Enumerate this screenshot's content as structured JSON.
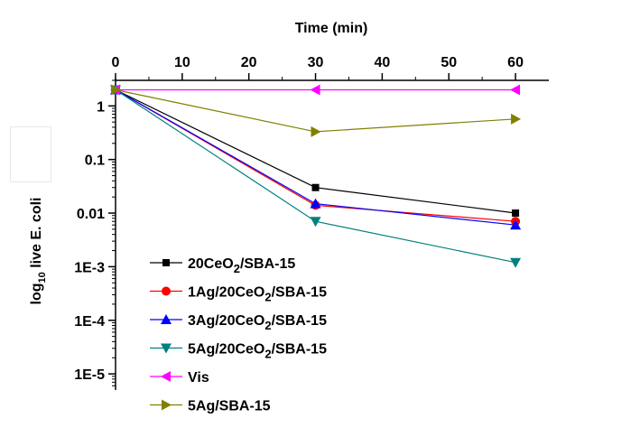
{
  "chart_data": {
    "type": "line",
    "xlabel": "Time (min)",
    "ylabel": {
      "prefix": "log",
      "subscript": "10",
      "suffix": " live E. coli"
    },
    "x_axis_position": "top",
    "y_scale": "log",
    "xlim": [
      0,
      65
    ],
    "ylim": [
      5e-06,
      3
    ],
    "x_ticks": [
      "0",
      "10",
      "20",
      "30",
      "40",
      "50",
      "60"
    ],
    "x_tick_values": [
      0,
      10,
      20,
      30,
      40,
      50,
      60
    ],
    "y_ticks": [
      {
        "value": 1,
        "label": "1",
        "sup": ""
      },
      {
        "value": 0.1,
        "label": "0.1",
        "sup": ""
      },
      {
        "value": 0.01,
        "label": "0.01",
        "sup": ""
      },
      {
        "value": 0.001,
        "label": "1E-3",
        "sup": ""
      },
      {
        "value": 0.0001,
        "label": "1E-4",
        "sup": ""
      },
      {
        "value": 1e-05,
        "label": "1E-5",
        "sup": ""
      }
    ],
    "x": [
      0,
      30,
      60
    ],
    "series": [
      {
        "name": "20CeO2/SBA-15",
        "label": {
          "pre": "20CeO",
          "sub": "2",
          "post": "/SBA-15"
        },
        "color": "#000000",
        "marker": "square",
        "values": [
          2,
          0.03,
          0.01
        ]
      },
      {
        "name": "1Ag/20CeO2/SBA-15",
        "label": {
          "pre": "1Ag/20CeO",
          "sub": "2",
          "post": "/SBA-15"
        },
        "color": "#ff0000",
        "marker": "circle",
        "values": [
          2,
          0.014,
          0.007
        ]
      },
      {
        "name": "3Ag/20CeO2/SBA-15",
        "label": {
          "pre": " 3Ag/20CeO",
          "sub": "2",
          "post": "/SBA-15"
        },
        "color": "#0000ff",
        "marker": "triangle-up",
        "values": [
          2,
          0.015,
          0.006
        ]
      },
      {
        "name": "5Ag/20CeO2/SBA-15",
        "label": {
          "pre": "5Ag/20CeO",
          "sub": "2",
          "post": "/SBA-15"
        },
        "color": "#008080",
        "marker": "triangle-down",
        "values": [
          2,
          0.007,
          0.0012
        ]
      },
      {
        "name": "Vis",
        "label": {
          "pre": "Vis",
          "sub": "",
          "post": ""
        },
        "color": "#ff00ff",
        "marker": "triangle-left",
        "values": [
          2,
          2,
          2
        ]
      },
      {
        "name": "5Ag/SBA-15",
        "label": {
          "pre": "5Ag/SBA-15",
          "sub": "",
          "post": ""
        },
        "color": "#808000",
        "marker": "triangle-right",
        "values": [
          2,
          0.33,
          0.57
        ]
      }
    ],
    "legend_position": "bottom-left",
    "grid": false
  }
}
